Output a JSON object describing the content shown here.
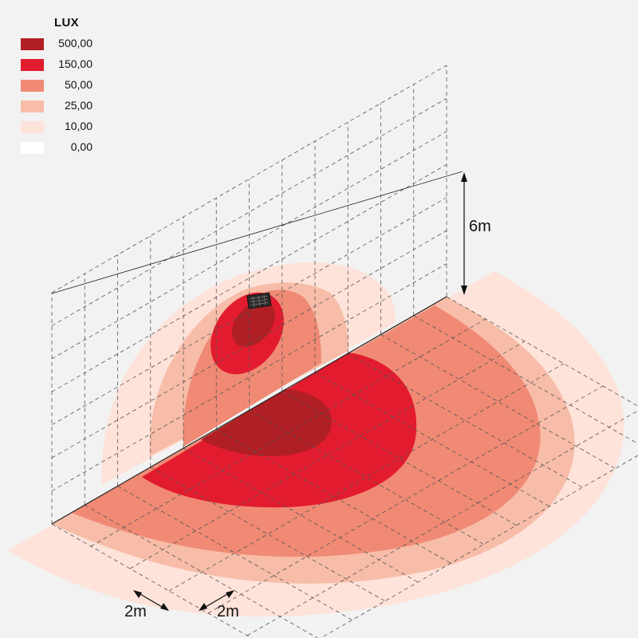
{
  "legend": {
    "title": "LUX",
    "items": [
      {
        "value": "500,00",
        "color": "#b01f24"
      },
      {
        "value": "150,00",
        "color": "#e21c2e"
      },
      {
        "value": "50,00",
        "color": "#f08a75"
      },
      {
        "value": "25,00",
        "color": "#f7bda8"
      },
      {
        "value": "10,00",
        "color": "#fde3da"
      },
      {
        "value": "0,00",
        "color": "#ffffff"
      }
    ]
  },
  "dimensions": {
    "height_label": "6m",
    "grid_x_label": "2m",
    "grid_y_label": "2m"
  }
}
